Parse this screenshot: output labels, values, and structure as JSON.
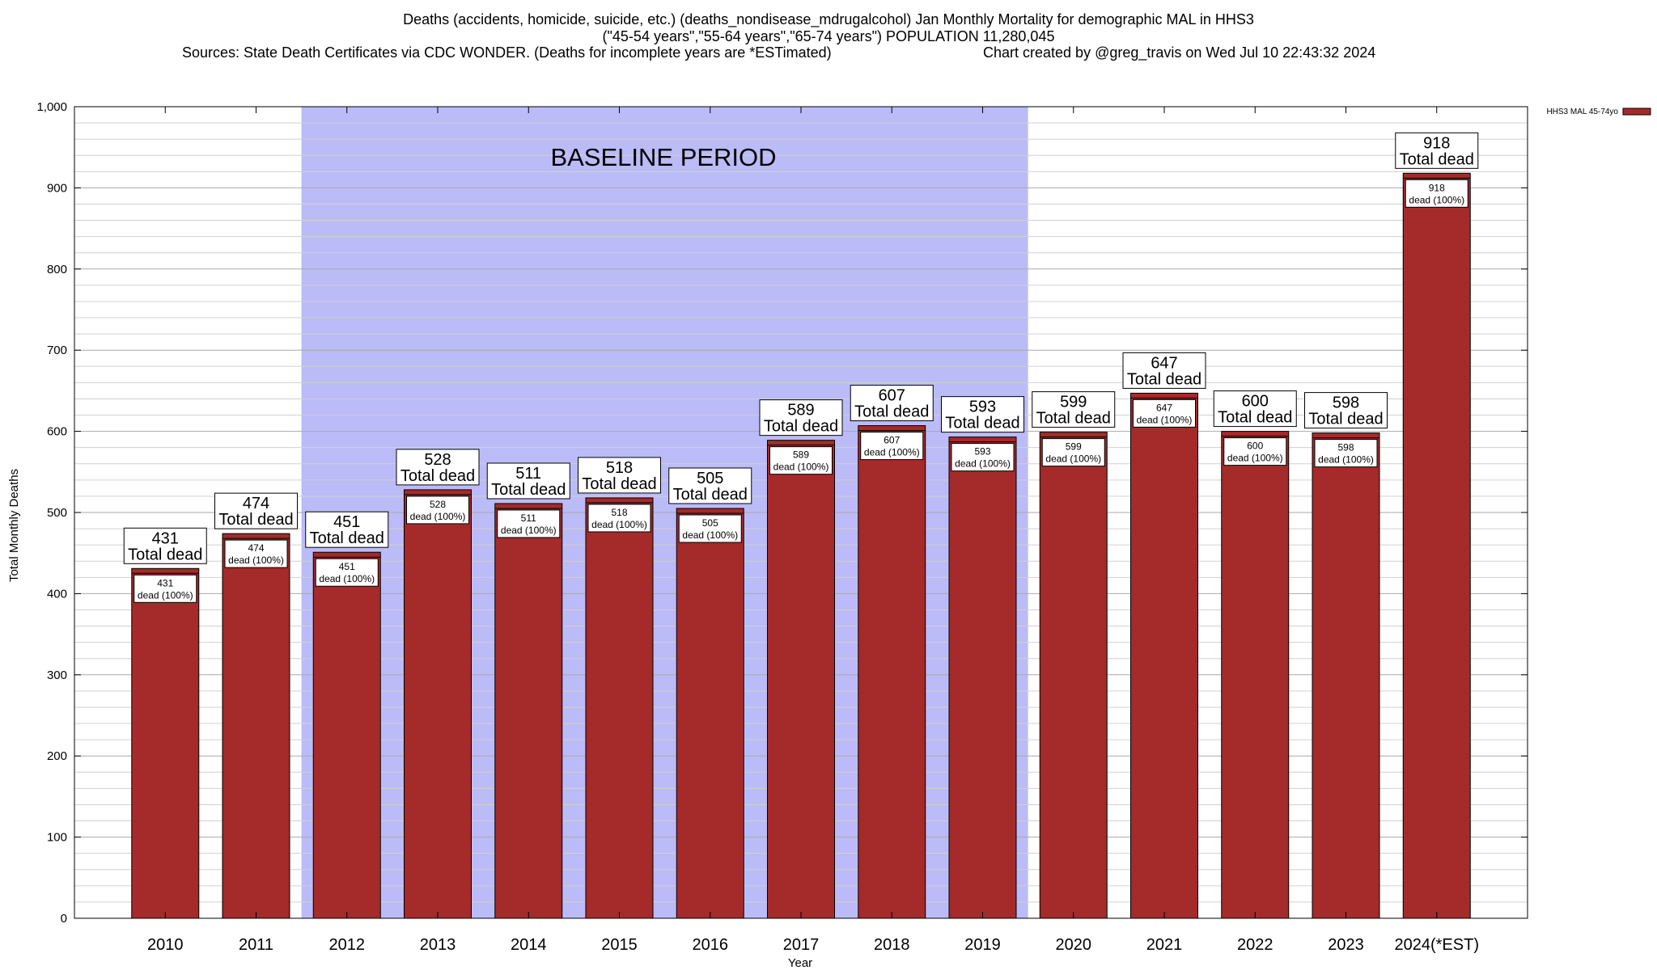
{
  "chart_data": {
    "type": "bar",
    "title_lines": [
      "Deaths (accidents, homicide, suicide, etc.) (deaths_nondisease_mdrugalcohol) Jan Monthly Mortality for demographic MAL in HHS3",
      "(\"45-54 years\",\"55-64 years\",\"65-74 years\") POPULATION 11,280,045"
    ],
    "source": "Sources: State Death Certificates via CDC WONDER. (Deaths for incomplete years are *ESTimated)",
    "credit": "Chart created by @greg_travis on Wed Jul 10 22:43:32 2024",
    "xlabel": "Year",
    "ylabel": "Total Monthly Deaths",
    "ylim": [
      0,
      1000
    ],
    "yticks": [
      0,
      100,
      200,
      300,
      400,
      500,
      600,
      700,
      800,
      900,
      1000
    ],
    "ytick_labels": [
      "0",
      "100",
      "200",
      "300",
      "400",
      "500",
      "600",
      "700",
      "800",
      "900",
      "1,000"
    ],
    "grid": true,
    "legend_position": "top-right",
    "categories": [
      "2010",
      "2011",
      "2012",
      "2013",
      "2014",
      "2015",
      "2016",
      "2017",
      "2018",
      "2019",
      "2020",
      "2021",
      "2022",
      "2023",
      "2024(*EST)"
    ],
    "series": [
      {
        "name": "HHS3 MAL 45-74yo",
        "color": "#a52a2a",
        "values": [
          431,
          474,
          451,
          528,
          511,
          518,
          505,
          589,
          607,
          593,
          599,
          647,
          600,
          598,
          918
        ]
      }
    ],
    "total_label": "Total dead",
    "inner_label": "dead (100%)",
    "baseline": {
      "label": "BASELINE PERIOD",
      "from": "2012",
      "to": "2019",
      "color": "#bbbbf8"
    }
  }
}
